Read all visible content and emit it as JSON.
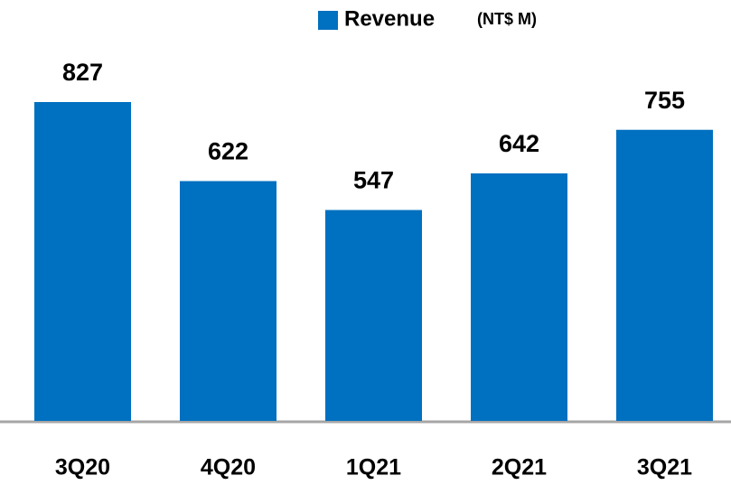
{
  "chart_data": {
    "type": "bar",
    "legend": "Revenue",
    "unit": "(NT$ M)",
    "categories": [
      "3Q20",
      "4Q20",
      "1Q21",
      "2Q21",
      "3Q21"
    ],
    "values": [
      827,
      622,
      547,
      642,
      755
    ],
    "color": "#0070c0"
  }
}
